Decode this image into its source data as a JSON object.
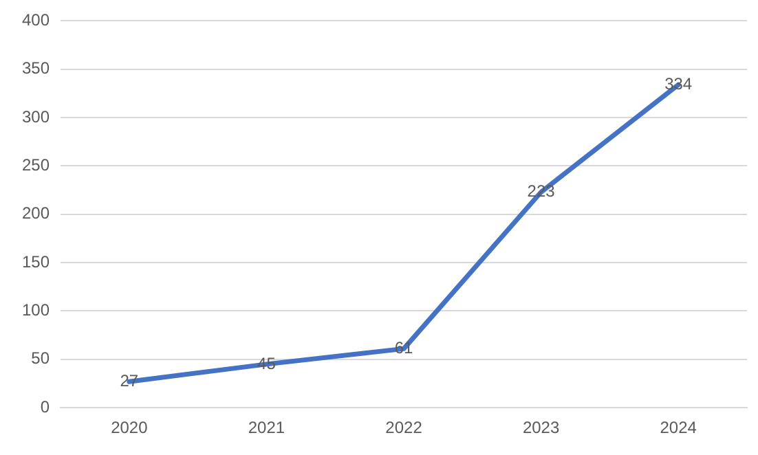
{
  "chart_data": {
    "type": "line",
    "categories": [
      "2020",
      "2021",
      "2022",
      "2023",
      "2024"
    ],
    "series": [
      {
        "color": "#4472c4",
        "values": [
          27,
          45,
          61,
          223,
          334
        ]
      }
    ],
    "ylim": [
      0,
      400
    ],
    "yticks": [
      0,
      50,
      100,
      150,
      200,
      250,
      300,
      350,
      400
    ],
    "grid": "y",
    "legend": false,
    "marker": "none",
    "line_style": "solid",
    "data_labels": true
  }
}
